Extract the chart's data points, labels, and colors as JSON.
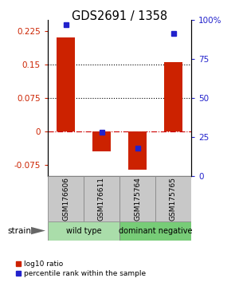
{
  "title": "GDS2691 / 1358",
  "samples": [
    "GSM176606",
    "GSM176611",
    "GSM175764",
    "GSM175765"
  ],
  "log10_ratio": [
    0.21,
    -0.044,
    -0.085,
    0.155
  ],
  "percentile_rank": [
    97,
    28,
    18,
    91
  ],
  "ylim_left": [
    -0.1,
    0.25
  ],
  "ylim_right": [
    0,
    100
  ],
  "left_ticks": [
    -0.075,
    0,
    0.075,
    0.15,
    0.225
  ],
  "right_ticks": [
    0,
    25,
    50,
    75,
    100
  ],
  "right_tick_labels": [
    "0",
    "25",
    "50",
    "75",
    "100%"
  ],
  "hlines_dotted": [
    0.075,
    0.15
  ],
  "bar_color": "#cc2200",
  "dot_color": "#2222cc",
  "zero_line_color": "#cc0000",
  "sample_box_color": "#c8c8c8",
  "group1_color": "#aaddaa",
  "group2_color": "#77cc77",
  "strain_label": "strain",
  "legend_ratio_label": "log10 ratio",
  "legend_pct_label": "percentile rank within the sample",
  "bar_width": 0.5
}
